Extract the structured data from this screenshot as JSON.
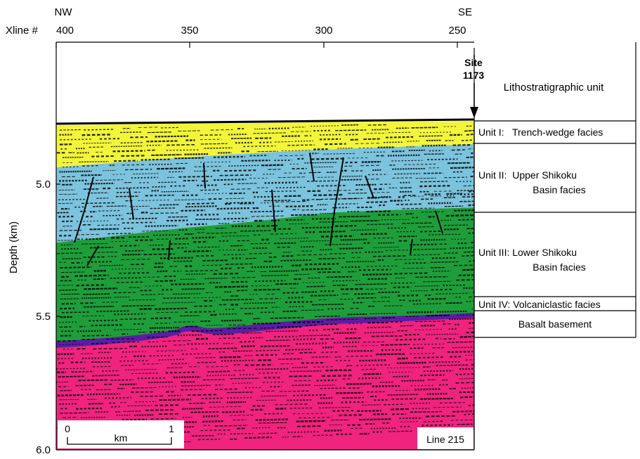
{
  "header": {
    "left_direction": "NW",
    "right_direction": "SE",
    "xline_prefix": "Xline #",
    "xline_ticks": [
      "400",
      "350",
      "300",
      "250"
    ]
  },
  "site": {
    "line1": "Site",
    "line2": "1173"
  },
  "column_title": "Lithostratigraphic unit",
  "depth_axis": {
    "label": "Depth (km)",
    "ticks": [
      "5.0",
      "5.5",
      "6.0"
    ]
  },
  "units": [
    {
      "id": "unit-1",
      "line1": "Unit I:   Trench-wedge facies",
      "line2": "",
      "color": "#f2f53a"
    },
    {
      "id": "unit-2",
      "line1": "Unit II:  Upper Shikoku",
      "line2": "Basin facies",
      "color": "#7cc3dd"
    },
    {
      "id": "unit-3",
      "line1": "Unit III: Lower Shikoku",
      "line2": "Basin facies",
      "color": "#1e9e3a"
    },
    {
      "id": "unit-4",
      "line1": "Unit IV: Volcaniclastic facies",
      "line2": "",
      "color": "#5a1ea6"
    },
    {
      "id": "basement",
      "line1": "Basalt basement",
      "line2": "",
      "color": "#f0237f"
    }
  ],
  "scale_bar": {
    "start": "0",
    "end": "1",
    "unit": "km"
  },
  "line_label": "Line 215"
}
